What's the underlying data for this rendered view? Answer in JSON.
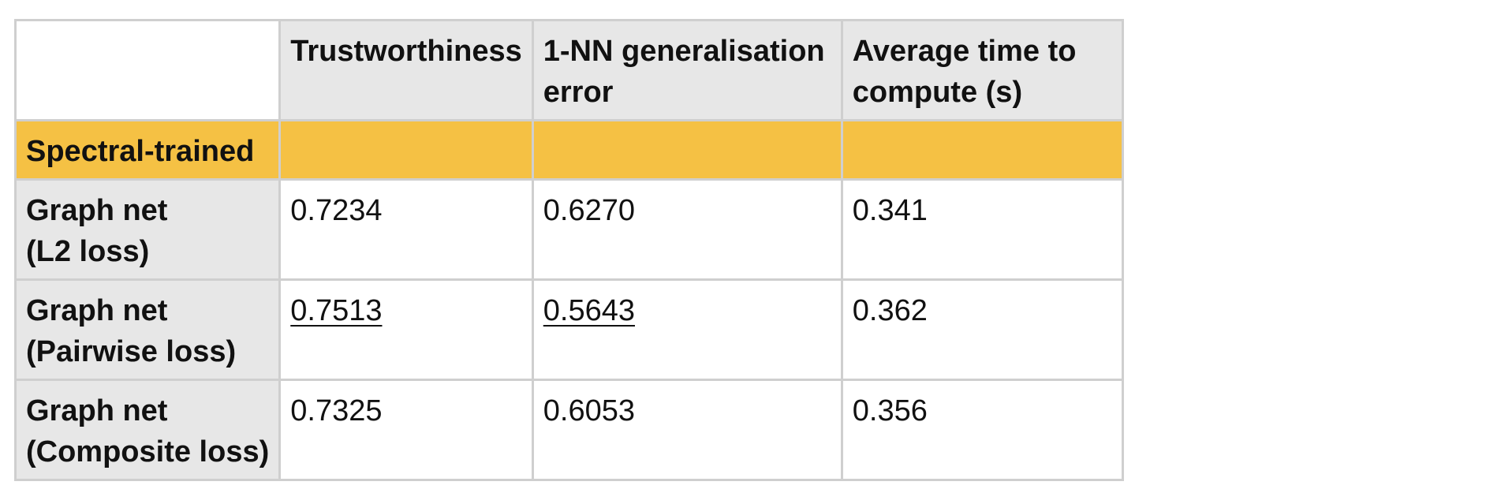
{
  "table": {
    "headers": {
      "corner": "",
      "trustworthiness": "Trustworthiness",
      "nn_error_line1": "1-NN generalisation",
      "nn_error_line2": "error",
      "time_line1": "Average time to",
      "time_line2": "compute (s)"
    },
    "section": {
      "label": "Spectral-trained"
    },
    "rows": [
      {
        "label_line1": "Graph net",
        "label_line2": "(L2 loss)",
        "trustworthiness": "0.7234",
        "nn_error": "0.6270",
        "time": "0.341",
        "best": false
      },
      {
        "label_line1": "Graph net",
        "label_line2": "(Pairwise loss)",
        "trustworthiness": "0.7513",
        "nn_error": "0.5643",
        "time": "0.362",
        "best": true
      },
      {
        "label_line1": "Graph net",
        "label_line2": "(Composite loss)",
        "trustworthiness": "0.7325",
        "nn_error": "0.6053",
        "time": "0.356",
        "best": false
      }
    ]
  }
}
